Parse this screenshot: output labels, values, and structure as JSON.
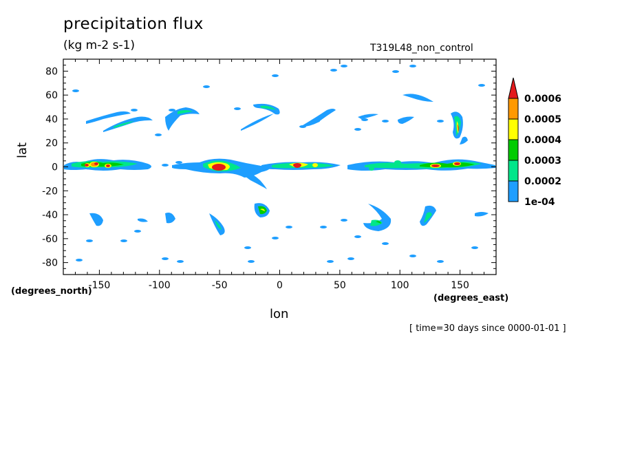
{
  "title": "precipitation flux",
  "units": "(kg m-2 s-1)",
  "run_name": "T319L48_non_control",
  "time_label": "[ time=30 days since 0000-01-01 ]",
  "axes": {
    "x_label": "lon",
    "y_label": "lat",
    "x_units": "(degrees_east)",
    "y_units": "(degrees_north)",
    "x_ticks": [
      "-150",
      "-100",
      "-50",
      "0",
      "50",
      "100",
      "150"
    ],
    "y_ticks": [
      "80",
      "60",
      "40",
      "20",
      "0",
      "-20",
      "-40",
      "-60",
      "-80"
    ],
    "x_range": [
      -180,
      180
    ],
    "y_range": [
      -90,
      90
    ]
  },
  "colorbar": {
    "labels": [
      "0.0006",
      "0.0005",
      "0.0004",
      "0.0003",
      "0.0002",
      "1e-04"
    ],
    "colors": [
      "#e31a1c",
      "#ff9900",
      "#ffff00",
      "#00cc00",
      "#00e68a",
      "#1e9eff"
    ],
    "extend": "max"
  },
  "colors": {
    "level1": "#1e9eff",
    "level2": "#00e68a",
    "level3": "#00cc00",
    "level4": "#ffff00",
    "level5": "#ff9900",
    "level6": "#e31a1c"
  }
}
